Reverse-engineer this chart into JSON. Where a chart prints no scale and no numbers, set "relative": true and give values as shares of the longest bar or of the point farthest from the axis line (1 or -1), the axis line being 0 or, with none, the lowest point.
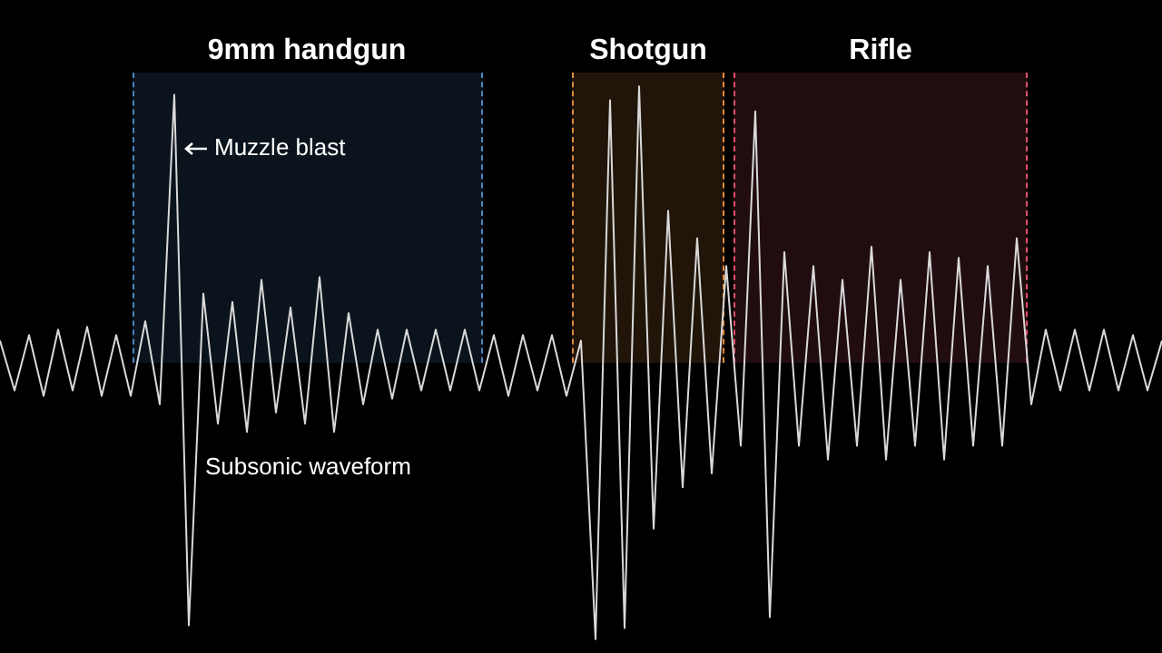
{
  "chart_data": {
    "type": "line",
    "relative": true,
    "marker": "none",
    "line_style": "solid",
    "categories": [
      null,
      null,
      null,
      null,
      null,
      null,
      null,
      null,
      null,
      null,
      null,
      null,
      null,
      null,
      null,
      null,
      null,
      null,
      null,
      null,
      null,
      null,
      null,
      null,
      null,
      null,
      null,
      null,
      null,
      null,
      null,
      null,
      null,
      null,
      null,
      null,
      null,
      null,
      null,
      null,
      null,
      null,
      null,
      null,
      null,
      null,
      null,
      null,
      null,
      null,
      null,
      null,
      null,
      null,
      null,
      null,
      null,
      null,
      null,
      null,
      null,
      null,
      null,
      null,
      null,
      null,
      null,
      null,
      null,
      null,
      null,
      null,
      null,
      null,
      null,
      null,
      null,
      null,
      null,
      null,
      null
    ],
    "series": [
      {
        "color": "#d9d9d9",
        "values": [
          0.54,
          0.45,
          0.55,
          0.44,
          0.56,
          0.45,
          0.565,
          0.44,
          0.55,
          0.44,
          0.575,
          0.425,
          0.985,
          0.025,
          0.625,
          0.39,
          0.61,
          0.375,
          0.65,
          0.41,
          0.6,
          0.39,
          0.655,
          0.375,
          0.59,
          0.425,
          0.56,
          0.435,
          0.56,
          0.45,
          0.56,
          0.45,
          0.56,
          0.45,
          0.55,
          0.44,
          0.55,
          0.45,
          0.55,
          0.44,
          0.54,
          0,
          0.975,
          0.02,
          1,
          0.2,
          0.775,
          0.275,
          0.725,
          0.3,
          0.675,
          0.35,
          0.955,
          0.04,
          0.7,
          0.35,
          0.675,
          0.325,
          0.65,
          0.35,
          0.71,
          0.325,
          0.65,
          0.35,
          0.7,
          0.325,
          0.69,
          0.35,
          0.675,
          0.35,
          0.725,
          0.425,
          0.56,
          0.45,
          0.56,
          0.45,
          0.56,
          0.45,
          0.55,
          0.45,
          0.54
        ]
      }
    ],
    "annotations": [
      "9mm handgun",
      "Shotgun",
      "Rifle",
      "Muzzle blast",
      "Subsonic waveform"
    ]
  }
}
